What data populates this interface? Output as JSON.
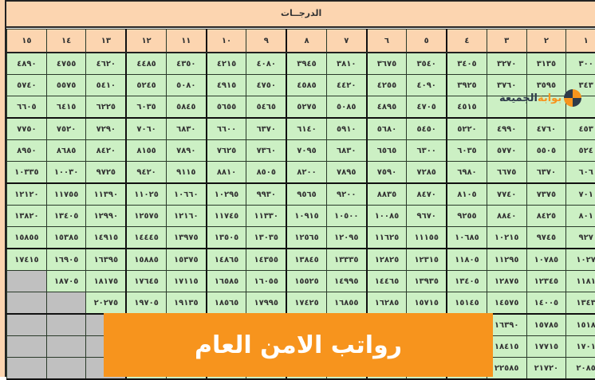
{
  "header": {
    "title": "الدرجــات"
  },
  "grades": [
    "١٥",
    "١٤",
    "١٣",
    "١٢",
    "١١",
    "١٠",
    "٩",
    "٨",
    "٧",
    "٦",
    "٥",
    "٤",
    "٣",
    "٢",
    "١"
  ],
  "rows": [
    [
      "٤٨٩٠",
      "٤٧٥٥",
      "٤٦٢٠",
      "٤٤٨٥",
      "٤٣٥٠",
      "٤٢١٥",
      "٤٠٨٠",
      "٣٩٤٥",
      "٣٨١٠",
      "٣٦٧٥",
      "٣٥٤٠",
      "٣٤٠٥",
      "٣٢٧٠",
      "٣١٣٥",
      "٣٠٠"
    ],
    [
      "٥٧٤٠",
      "٥٥٧٥",
      "٥٤١٠",
      "٥٢٤٥",
      "٥٠٨٠",
      "٤٩١٥",
      "٤٧٥٠",
      "٤٥٨٥",
      "٤٤٢٠",
      "٤٢٥٥",
      "٤٠٩٠",
      "٣٩٢٥",
      "٣٧٦٠",
      "٣٥٩٥",
      "٣٤٣"
    ],
    [
      "٦٦٠٥",
      "٦٤١٥",
      "٦٢٢٥",
      "٦٠٣٥",
      "٥٨٤٥",
      "٥٦٥٥",
      "٥٤٦٥",
      "٥٢٧٥",
      "٥٠٨٥",
      "٤٨٩٥",
      "٤٧٠٥",
      "٤٥١٥",
      "",
      "",
      ""
    ],
    [
      "٧٧٥٠",
      "٧٥٢٠",
      "٧٢٩٠",
      "٧٠٦٠",
      "٦٨٣٠",
      "٦٦٠٠",
      "٦٣٧٠",
      "٦١٤٠",
      "٥٩١٠",
      "٥٦٨٠",
      "٥٤٥٠",
      "٥٢٢٠",
      "٤٩٩٠",
      "٤٧٦٠",
      "٤٥٣"
    ],
    [
      "٨٩٥٠",
      "٨٦٨٥",
      "٨٤٢٠",
      "٨١٥٥",
      "٧٨٩٠",
      "٧٦٢٥",
      "٧٣٦٠",
      "٧٠٩٥",
      "٦٨٣٠",
      "٦٥٦٥",
      "٦٣٠٠",
      "٦٠٣٥",
      "٥٧٧٠",
      "٥٥٠٥",
      "٥٢٤"
    ],
    [
      "١٠٣٣٥",
      "١٠٠٣٠",
      "٩٧٢٥",
      "٩٤٢٠",
      "٩١١٥",
      "٨٨١٠",
      "٨٥٠٥",
      "٨٢٠٠",
      "٧٨٩٥",
      "٧٥٩٠",
      "٧٢٨٥",
      "٦٩٨٠",
      "٦٦٧٥",
      "٦٣٧٠",
      "٦٠٦"
    ],
    [
      "١٢١٢٠",
      "١١٧٥٥",
      "١١٣٩٠",
      "١١٠٢٥",
      "١٠٦٦٠",
      "١٠٢٩٥",
      "٩٩٣٠",
      "٩٥٦٥",
      "٩٢٠٠",
      "٨٨٣٥",
      "٨٤٧٠",
      "٨١٠٥",
      "٧٧٤٠",
      "٧٣٧٥",
      "٧٠١"
    ],
    [
      "١٣٨٢٠",
      "١٣٤٠٥",
      "١٢٩٩٠",
      "١٢٥٧٥",
      "١٢١٦٠",
      "١١٧٤٥",
      "١١٣٣٠",
      "١٠٩١٥",
      "١٠٥٠٠",
      "١٠٠٨٥",
      "٩٦٧٠",
      "٩٢٥٥",
      "٨٨٤٠",
      "٨٤٢٥",
      "٨٠١"
    ],
    [
      "١٥٨٥٥",
      "١٥٣٨٥",
      "١٤٩١٥",
      "١٤٤٤٥",
      "١٣٩٧٥",
      "١٣٥٠٥",
      "١٣٠٣٥",
      "١٢٥٦٥",
      "١٢٠٩٥",
      "١١٦٢٥",
      "١١١٥٥",
      "١٠٦٨٥",
      "١٠٢١٥",
      "٩٧٤٥",
      "٩٢٧"
    ],
    [
      "١٧٤١٥",
      "١٦٩٠٥",
      "١٦٣٩٥",
      "١٥٨٨٥",
      "١٥٣٧٥",
      "١٤٨٦٥",
      "١٤٣٥٥",
      "١٣٨٤٥",
      "١٣٣٣٥",
      "١٢٨٢٥",
      "١٢٣١٥",
      "١١٨٠٥",
      "١١٢٩٥",
      "١٠٧٨٥",
      "١٠٢٧"
    ],
    [
      null,
      "١٨٧٠٥",
      "١٨١٧٥",
      "١٧٦٤٥",
      "١٧١١٥",
      "١٦٥٨٥",
      "١٦٠٥٥",
      "١٥٥٢٥",
      "١٤٩٩٥",
      "١٤٤٦٥",
      "١٣٩٣٥",
      "١٣٤٠٥",
      "١٢٨٧٥",
      "١٢٣٤٥",
      "١١٨١"
    ],
    [
      null,
      null,
      "٢٠٢٧٥",
      "١٩٧٠٥",
      "١٩١٣٥",
      "١٨٥٦٥",
      "١٧٩٩٥",
      "١٧٤٢٥",
      "١٦٨٥٥",
      "١٦٢٨٥",
      "١٥٧١٥",
      "١٥١٤٥",
      "١٤٥٧٥",
      "١٤٠٠٥",
      "١٣٤٣"
    ],
    [
      null,
      null,
      null,
      "",
      "",
      "",
      "",
      "",
      "",
      "",
      "",
      "",
      "١٦٣٩٠",
      "١٥٧٨٥",
      "١٥١٨"
    ],
    [
      null,
      null,
      null,
      "",
      "",
      "",
      "",
      "",
      "",
      "",
      "",
      "",
      "١٨٤١٥",
      "١٧٧١٥",
      "١٧٠١"
    ],
    [
      null,
      null,
      null,
      "",
      "",
      "",
      "",
      "",
      "",
      "",
      "",
      "",
      "٢٢٥٨٥",
      "٢١٧٢٠",
      "٢٠٨٥"
    ]
  ],
  "colors": {
    "header_bg": "#fcd5b0",
    "cell_bg": "#ccf0c4",
    "empty_cell_bg": "#c0c0c0",
    "banner_bg": "#f7941d"
  },
  "logo": {
    "text_accent": "بوابة",
    "text_main": "الجميعة",
    "icon": "aperture-logo-icon"
  },
  "banner": {
    "text": "رواتب الامن العام"
  }
}
